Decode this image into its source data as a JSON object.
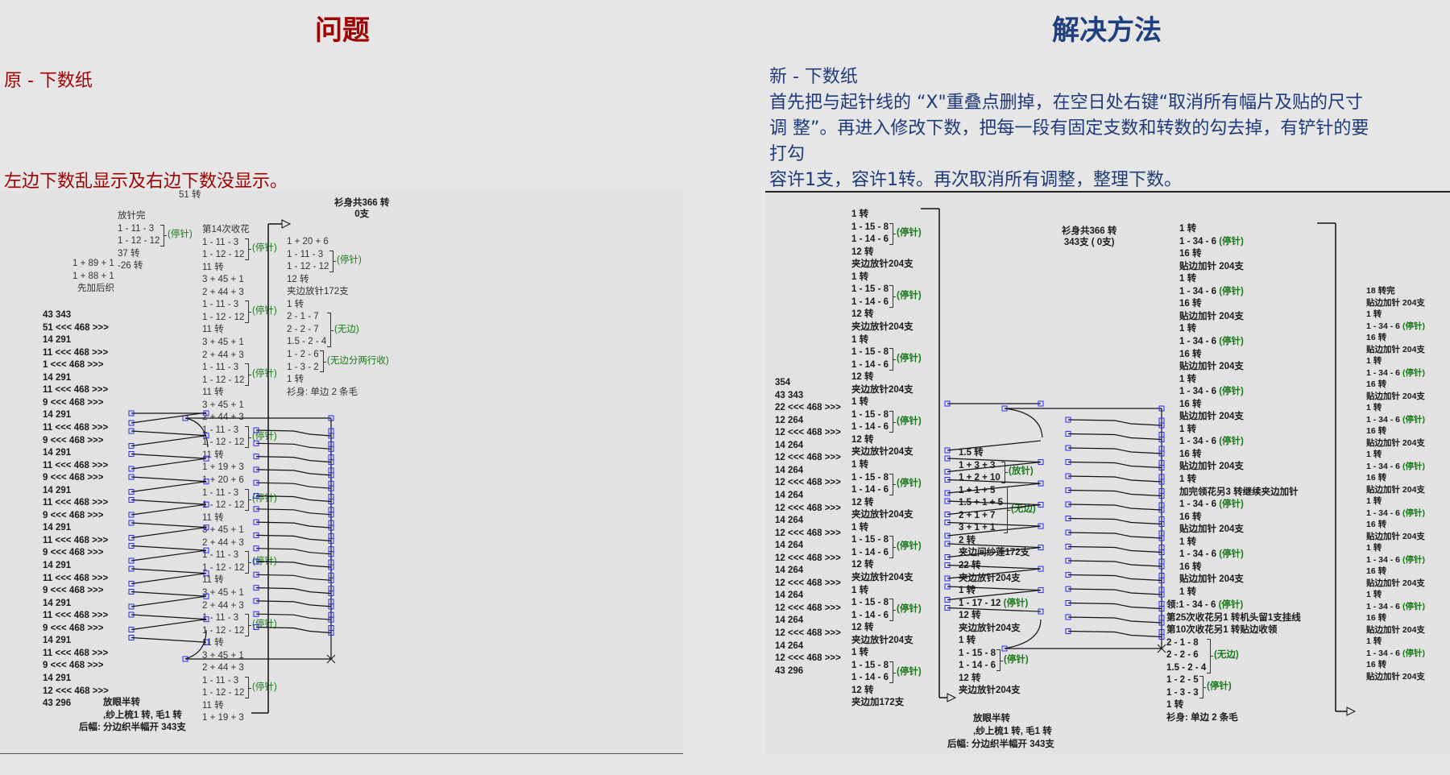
{
  "left": {
    "title": "问题",
    "subtitle": "原 - 下数纸",
    "problem": "左边下数乱显示及右边下数没显示。",
    "top_turns": "51 转",
    "body_total": [
      "衫身共366 转",
      "0支"
    ],
    "bottom": [
      "放眼半转",
      ",纱上梳1 转, 毛1 转",
      "后幅: 分边织半幅开 343支"
    ],
    "columns": {
      "counts": {
        "items": [
          "43   343",
          "51 <<< 468 >>>",
          "14   291",
          "11 <<< 468 >>>",
          "1 <<< 468 >>>",
          "14   291",
          "11 <<< 468 >>>",
          "9 <<< 468 >>>",
          "14   291",
          "11 <<< 468 >>>",
          "9 <<< 468 >>>",
          "14   291",
          "11 <<< 468 >>>",
          "9 <<< 468 >>>",
          "14   291",
          "11 <<< 468 >>>",
          "9 <<< 468 >>>",
          "14   291",
          "11 <<< 468 >>>",
          "9 <<< 468 >>>",
          "14   291",
          "11 <<< 468 >>>",
          "9 <<< 468 >>>",
          "14   291",
          "11 <<< 468 >>>",
          "9 <<< 468 >>>",
          "14   291",
          "11 <<< 468 >>>",
          "9 <<< 468 >>>",
          "14   291",
          "12 <<< 468 >>>",
          "43   296"
        ],
        "notes": []
      },
      "release": {
        "items": [
          "放针完",
          "1 - 11 - 3",
          "1 - 12 - 12",
          "37 转",
          "-26 转"
        ],
        "notes": [
          {
            "text": "(停针)",
            "rows": [
              1,
              2
            ]
          }
        ]
      },
      "pre_add": {
        "items": [
          "1 + 89 + 1",
          "1 + 88 + 1",
          "先加后织"
        ],
        "notes": []
      },
      "shaping": {
        "items": [
          "第14次收花",
          "1 - 11 - 3",
          "1 - 12 - 12",
          "11 转",
          "3 + 45 + 1",
          "2 + 44 + 3",
          "1 - 11 - 3",
          "1 - 12 - 12",
          "11 转",
          "3 + 45 + 1",
          "2 + 44 + 3",
          "1 - 11 - 3",
          "1 - 12 - 12",
          "11 转",
          "3 + 45 + 1",
          "2 + 44 + 3",
          "1 - 11 - 3",
          "1 - 12 - 12",
          "11 转",
          "1 + 19 + 3",
          "1 + 20 + 6",
          "1 - 11 - 3",
          "1 - 12 - 12",
          "11 转",
          "3 + 45 + 1",
          "2 + 44 + 3",
          "1 - 11 - 3",
          "1 - 12 - 12",
          "11 转",
          "3 + 45 + 1",
          "2 + 44 + 3",
          "1 - 11 - 3",
          "1 - 12 - 12",
          "11 转",
          "3 + 45 + 1",
          "2 + 44 + 3",
          "1 - 11 - 3",
          "1 - 12 - 12",
          "11 转",
          "1 + 19 + 3"
        ],
        "notes": [
          {
            "text": "(停针)",
            "rows": [
              1,
              2
            ]
          },
          {
            "text": "(停针)",
            "rows": [
              6,
              7
            ]
          },
          {
            "text": "(停针)",
            "rows": [
              11,
              12
            ]
          },
          {
            "text": "(停针)",
            "rows": [
              16,
              17
            ]
          },
          {
            "text": "(停针)",
            "rows": [
              21,
              22
            ]
          },
          {
            "text": "(停针)",
            "rows": [
              26,
              27
            ]
          },
          {
            "text": "(停针)",
            "rows": [
              31,
              32
            ]
          },
          {
            "text": "(停针)",
            "rows": [
              36,
              37
            ]
          }
        ]
      },
      "right": {
        "items": [
          "1 + 20 + 6",
          "1 - 11 - 3",
          "1 - 12 - 12",
          "12 转",
          "夹边放针172支",
          "1 转",
          "2 - 1 - 7",
          "2 - 2 - 7",
          "1.5 - 2 - 4",
          "1 - 2 - 6",
          "1 - 3 - 2",
          "1 转",
          "衫身: 单边 2 条毛"
        ],
        "notes": [
          {
            "text": "(停针)",
            "rows": [
              1,
              2
            ]
          },
          {
            "text": "(无边)",
            "rows": [
              6,
              8
            ]
          },
          {
            "text": "(无边分两行收)",
            "rows": [
              9,
              10
            ]
          }
        ]
      }
    }
  },
  "right": {
    "title": "解决方法",
    "subtitle": "新 - 下数纸",
    "instructions": [
      "首先把与起针线的 “X\"重叠点删掉，在空日处右键“取消所有幅片及贴的尺寸",
      "调 整”。再进入修改下数，把每一段有固定支数和转数的勾去掉，有铲针的要",
      "打勾",
      "容许1支，容许1转。再次取消所有调整，整理下数。"
    ],
    "body_total": [
      "衫身共366 转",
      "343支 ( 0支)"
    ],
    "bottom": [
      "放眼半转",
      ",纱上梳1 转, 毛1 转",
      "后幅: 分边织半幅开 343支"
    ],
    "columns": {
      "counts": {
        "items": [
          "354",
          "43   343",
          "22 <<< 468 >>>",
          "12   264",
          "12 <<< 468 >>>",
          "14   264",
          "12 <<< 468 >>>",
          "14   264",
          "12 <<< 468 >>>",
          "14   264",
          "12 <<< 468 >>>",
          "14   264",
          "12 <<< 468 >>>",
          "14   264",
          "12 <<< 468 >>>",
          "14   264",
          "12 <<< 468 >>>",
          "14   264",
          "12 <<< 468 >>>",
          "14   264",
          "12 <<< 468 >>>",
          "14   264",
          "12 <<< 468 >>>",
          "43   296"
        ],
        "notes": []
      },
      "left_side": {
        "items": [
          "1 转",
          "1 - 15 - 8",
          "1 - 14 - 6",
          "12 转",
          "夹边放针204支",
          "1 转",
          "1 - 15 - 8",
          "1 - 14 - 6",
          "12 转",
          "夹边放针204支",
          "1 转",
          "1 - 15 - 8",
          "1 - 14 - 6",
          "12 转",
          "夹边放针204支",
          "1 转",
          "1 - 15 - 8",
          "1 - 14 - 6",
          "12 转",
          "夹边放针204支",
          "1 转",
          "1 - 15 - 8",
          "1 - 14 - 6",
          "12 转",
          "夹边放针204支",
          "1 转",
          "1 - 15 - 8",
          "1 - 14 - 6",
          "12 转",
          "夹边放针204支",
          "1 转",
          "1 - 15 - 8",
          "1 - 14 - 6",
          "12 转",
          "夹边放针204支",
          "1 转",
          "1 - 15 - 8",
          "1 - 14 - 6",
          "12 转",
          "夹边加172支"
        ],
        "notes": [
          {
            "text": "(停针)",
            "rows": [
              1,
              2
            ]
          },
          {
            "text": "(停针)",
            "rows": [
              6,
              7
            ]
          },
          {
            "text": "(停针)",
            "rows": [
              11,
              12
            ]
          },
          {
            "text": "(停针)",
            "rows": [
              16,
              17
            ]
          },
          {
            "text": "(停针)",
            "rows": [
              21,
              22
            ]
          },
          {
            "text": "(停针)",
            "rows": [
              26,
              27
            ]
          },
          {
            "text": "(停针)",
            "rows": [
              31,
              32
            ]
          },
          {
            "text": "(停针)",
            "rows": [
              36,
              37
            ]
          }
        ]
      },
      "middle": {
        "items": [
          "1.5 转",
          "1 + 3 + 3",
          "1 + 2 + 10",
          "1 + 1 + 5",
          "1.5 + 1 + 5",
          "2 + 1 + 7",
          "3 + 1 + 1",
          "2 转",
          "夹边间纱莲172支",
          "22 转",
          "夹边放针204支",
          "1 转",
          "1 - 17 - 12 (停针)",
          "12 转",
          "夹边放针204支",
          "1 转",
          "1 - 15 - 8",
          "1 - 14 - 6",
          "12 转",
          "夹边放针204支"
        ],
        "notes": [
          {
            "text": "(放针)",
            "rows": [
              1,
              2
            ]
          },
          {
            "text": "(无边)",
            "rows": [
              3,
              6
            ]
          },
          {
            "text": "(停针)",
            "rows": [
              16,
              17
            ]
          }
        ]
      },
      "body": {
        "items": [
          "1 转",
          "1 - 34 - 6 (停针)",
          "16 转",
          "贴边加针 204支",
          "1 转",
          "1 - 34 - 6 (停针)",
          "16 转",
          "贴边加针 204支",
          "1 转",
          "1 - 34 - 6 (停针)",
          "16 转",
          "贴边加针 204支",
          "1 转",
          "1 - 34 - 6 (停针)",
          "16 转",
          "贴边加针 204支",
          "1 转",
          "1 - 34 - 6 (停针)",
          "16 转",
          "贴边加针 204支",
          "1 转",
          "加完领花另3 转继续夹边加针",
          "1 - 34 - 6 (停针)",
          "16 转",
          "贴边加针 204支",
          "1 转",
          "1 - 34 - 6 (停针)",
          "16 转",
          "贴边加针 204支",
          "1 转"
        ],
        "notes": []
      },
      "neck": {
        "items": [
          "领:1 - 34 - 6 (停针)",
          "第25次收花另1 转机头留1支挂线",
          "第10次收花另1 转贴边收领",
          "2 - 1 - 8",
          "2 - 2 - 6",
          "1.5 - 2 - 4",
          "1 - 2 - 5",
          "1 - 3 - 3",
          "1 转",
          "衫身: 单边 2 条毛"
        ],
        "notes": [
          {
            "text": "(无边)",
            "rows": [
              3,
              5
            ]
          },
          {
            "text": "(停针)",
            "rows": [
              6,
              7
            ]
          }
        ]
      },
      "far_right": {
        "items": [
          "18 转完",
          "贴边加针 204支",
          "1 转",
          "1 - 34 - 6 (停针)",
          "16 转",
          "贴边加针 204支",
          "1 转",
          "1 - 34 - 6 (停针)",
          "16 转",
          "贴边加针 204支",
          "1 转",
          "1 - 34 - 6 (停针)",
          "16 转",
          "贴边加针 204支",
          "1 转",
          "1 - 34 - 6 (停针)",
          "16 转",
          "贴边加针 204支",
          "1 转",
          "1 - 34 - 6 (停针)",
          "16 转",
          "贴边加针 204支",
          "1 转",
          "1 - 34 - 6 (停针)",
          "16 转",
          "贴边加针 204支",
          "1 转",
          "1 - 34 - 6 (停针)",
          "16 转",
          "贴边加针 204支",
          "1 转",
          "1 - 34 - 6 (停针)",
          "16 转",
          "贴边加针 204支"
        ],
        "notes": []
      }
    }
  },
  "colors": {
    "problem": "#a00000",
    "solution": "#1f3f7f",
    "note": "#1a7a1a",
    "node": "#2a2aff"
  }
}
